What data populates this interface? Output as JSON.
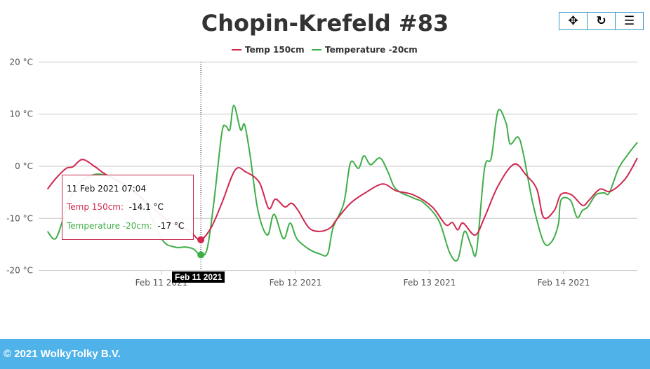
{
  "chart_data": {
    "type": "line",
    "title": "Chopin-Krefeld #83",
    "xlabel": "",
    "ylabel": "",
    "x_units": "days since Feb 11 2021 00:00",
    "xlim": [
      -0.92,
      3.55
    ],
    "ylim": [
      -20,
      20
    ],
    "yticks": [
      {
        "v": 20,
        "label": "20 °C"
      },
      {
        "v": 10,
        "label": "10 °C"
      },
      {
        "v": 0,
        "label": "0 °C"
      },
      {
        "v": -10,
        "label": "-10 °C"
      },
      {
        "v": -20,
        "label": "-20 °C"
      }
    ],
    "xticks": [
      {
        "v": 0,
        "label": "Feb 11 2021"
      },
      {
        "v": 1,
        "label": "Feb 12 2021"
      },
      {
        "v": 2,
        "label": "Feb 13 2021"
      },
      {
        "v": 3,
        "label": "Feb 14 2021"
      }
    ],
    "legend_position": "top-center",
    "grid": true,
    "series": [
      {
        "name": "Temp 150cm",
        "color": "#d0284f",
        "points": [
          [
            -0.85,
            -4.4
          ],
          [
            -0.79,
            -2.4
          ],
          [
            -0.71,
            -0.4
          ],
          [
            -0.66,
            -0.1
          ],
          [
            -0.59,
            1.3
          ],
          [
            -0.5,
            0
          ],
          [
            -0.42,
            -1.5
          ],
          [
            -0.26,
            -3.8
          ],
          [
            -0.1,
            -7.1
          ],
          [
            0.05,
            -10.5
          ],
          [
            0.21,
            -12.5
          ],
          [
            0.29,
            -14.1
          ],
          [
            0.37,
            -11.8
          ],
          [
            0.45,
            -7.1
          ],
          [
            0.55,
            -0.7
          ],
          [
            0.63,
            -1.1
          ],
          [
            0.73,
            -3.1
          ],
          [
            0.8,
            -8.1
          ],
          [
            0.85,
            -6.3
          ],
          [
            0.92,
            -7.8
          ],
          [
            0.97,
            -7.1
          ],
          [
            1.02,
            -8.5
          ],
          [
            1.1,
            -11.8
          ],
          [
            1.18,
            -12.5
          ],
          [
            1.26,
            -11.8
          ],
          [
            1.31,
            -10.1
          ],
          [
            1.41,
            -7.1
          ],
          [
            1.52,
            -5.1
          ],
          [
            1.65,
            -3.4
          ],
          [
            1.75,
            -4.7
          ],
          [
            1.88,
            -5.5
          ],
          [
            2.02,
            -7.8
          ],
          [
            2.12,
            -11.2
          ],
          [
            2.17,
            -10.8
          ],
          [
            2.21,
            -12.2
          ],
          [
            2.25,
            -10.9
          ],
          [
            2.34,
            -13.2
          ],
          [
            2.41,
            -9.8
          ],
          [
            2.51,
            -3.8
          ],
          [
            2.63,
            0.4
          ],
          [
            2.72,
            -1.7
          ],
          [
            2.8,
            -4.4
          ],
          [
            2.85,
            -9.8
          ],
          [
            2.93,
            -8.5
          ],
          [
            2.98,
            -5.4
          ],
          [
            3.06,
            -5.5
          ],
          [
            3.14,
            -7.5
          ],
          [
            3.19,
            -6.5
          ],
          [
            3.27,
            -4.4
          ],
          [
            3.35,
            -4.8
          ],
          [
            3.46,
            -2.4
          ],
          [
            3.55,
            1.6
          ]
        ]
      },
      {
        "name": "Temperature -20cm",
        "color": "#3fae49",
        "points": [
          [
            -0.85,
            -12.5
          ],
          [
            -0.79,
            -13.9
          ],
          [
            -0.73,
            -9.8
          ],
          [
            -0.68,
            -5.8
          ],
          [
            -0.58,
            -2.5
          ],
          [
            -0.42,
            -1.7
          ],
          [
            -0.16,
            -5.8
          ],
          [
            0,
            -13.9
          ],
          [
            0.1,
            -15.5
          ],
          [
            0.18,
            -15.5
          ],
          [
            0.24,
            -15.9
          ],
          [
            0.29,
            -17
          ],
          [
            0.34,
            -15.9
          ],
          [
            0.39,
            -7.1
          ],
          [
            0.45,
            6.3
          ],
          [
            0.48,
            7.7
          ],
          [
            0.51,
            7.0
          ],
          [
            0.54,
            11.7
          ],
          [
            0.59,
            7.0
          ],
          [
            0.62,
            8.0
          ],
          [
            0.66,
            2.3
          ],
          [
            0.72,
            -8.5
          ],
          [
            0.79,
            -13.2
          ],
          [
            0.84,
            -9.2
          ],
          [
            0.91,
            -13.9
          ],
          [
            0.96,
            -10.9
          ],
          [
            1.01,
            -13.9
          ],
          [
            1.1,
            -15.9
          ],
          [
            1.18,
            -16.8
          ],
          [
            1.24,
            -16.8
          ],
          [
            1.28,
            -11.8
          ],
          [
            1.36,
            -7.1
          ],
          [
            1.41,
            0.7
          ],
          [
            1.47,
            -0.4
          ],
          [
            1.51,
            2.0
          ],
          [
            1.56,
            0.3
          ],
          [
            1.63,
            1.6
          ],
          [
            1.69,
            -1.1
          ],
          [
            1.75,
            -4.4
          ],
          [
            1.88,
            -6.1
          ],
          [
            1.96,
            -7.1
          ],
          [
            2.07,
            -10.5
          ],
          [
            2.15,
            -16.6
          ],
          [
            2.21,
            -17.9
          ],
          [
            2.26,
            -12.5
          ],
          [
            2.31,
            -15.2
          ],
          [
            2.35,
            -16.3
          ],
          [
            2.41,
            -0.4
          ],
          [
            2.46,
            1.6
          ],
          [
            2.51,
            10.6
          ],
          [
            2.57,
            8.3
          ],
          [
            2.6,
            4.3
          ],
          [
            2.66,
            5.6
          ],
          [
            2.7,
            2.3
          ],
          [
            2.77,
            -7.1
          ],
          [
            2.85,
            -14.5
          ],
          [
            2.91,
            -14.5
          ],
          [
            2.96,
            -11.2
          ],
          [
            2.98,
            -6.5
          ],
          [
            3.05,
            -6.5
          ],
          [
            3.1,
            -9.8
          ],
          [
            3.14,
            -8.5
          ],
          [
            3.18,
            -7.8
          ],
          [
            3.24,
            -5.5
          ],
          [
            3.3,
            -5.1
          ],
          [
            3.34,
            -5.1
          ],
          [
            3.41,
            -0.4
          ],
          [
            3.48,
            2.3
          ],
          [
            3.55,
            4.6
          ]
        ]
      }
    ],
    "crosshair": {
      "x": 0.294,
      "label": "Feb 11 2021"
    },
    "tooltip": {
      "header": "11 Feb 2021 07:04",
      "rows": [
        {
          "label": "Temp 150cm:",
          "value": "-14.1 °C"
        },
        {
          "label": "Temperature -20cm:",
          "value": "-17 °C"
        }
      ]
    }
  },
  "toolbar": {
    "pan": "✥",
    "reset": "↻",
    "menu": "☰"
  },
  "footer": "© 2021 WolkyTolky B.V."
}
